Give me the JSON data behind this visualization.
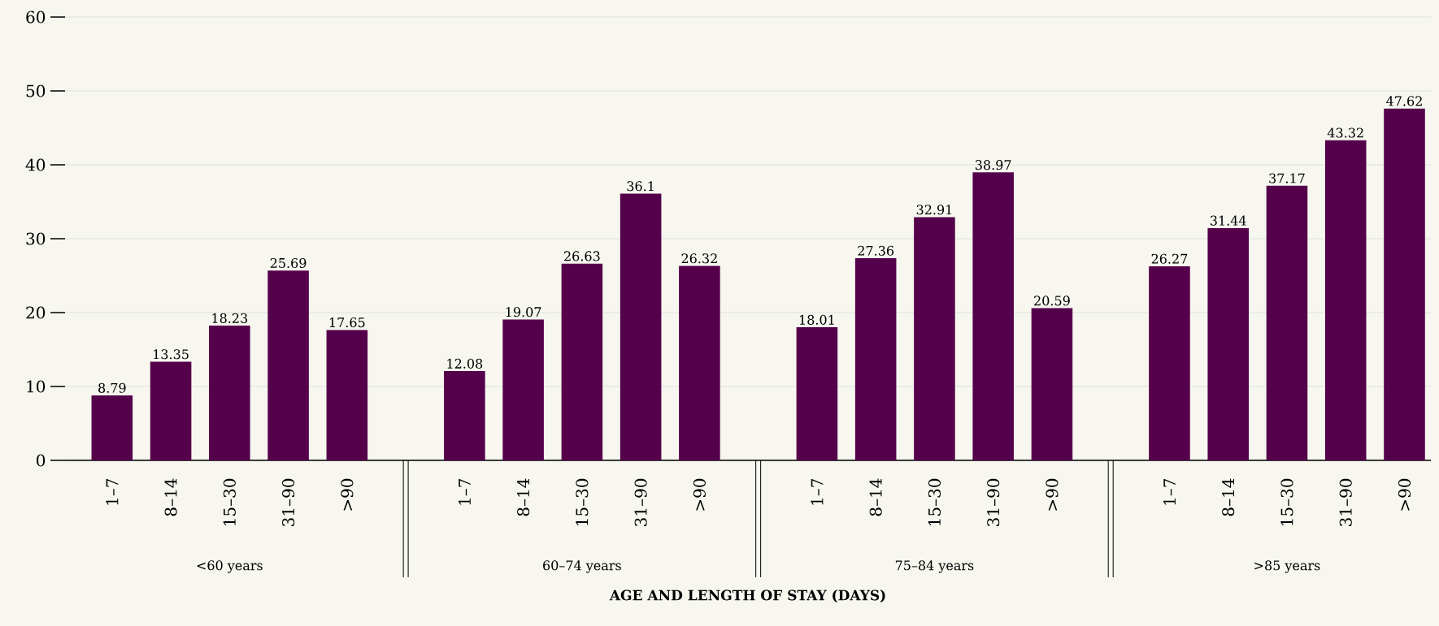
{
  "chart_data": {
    "type": "bar",
    "xlabel": "AGE AND LENGTH OF STAY (DAYS)",
    "categories": [
      "1–7",
      "8–14",
      "15–30",
      "31–90",
      ">90",
      "1–7",
      "8–14",
      "15–30",
      "31–90",
      ">90",
      "1–7",
      "8–14",
      "15–30",
      "31–90",
      ">90",
      "1–7",
      "8–14",
      "15–30",
      "31–90",
      ">90"
    ],
    "values": [
      8.79,
      13.35,
      18.23,
      25.69,
      17.65,
      12.08,
      19.07,
      26.63,
      36.1,
      26.32,
      18.01,
      27.36,
      32.91,
      38.97,
      20.59,
      26.27,
      31.44,
      37.17,
      43.32,
      47.62
    ],
    "color": "#55004a",
    "data_labels": true,
    "grid": "y",
    "ylim": [
      0,
      60
    ],
    "yticks": [
      0,
      10,
      20,
      30,
      40,
      50,
      60
    ],
    "annotations": [
      "<60 years",
      "60–74 years",
      "75–84 years",
      ">85 years"
    ]
  }
}
